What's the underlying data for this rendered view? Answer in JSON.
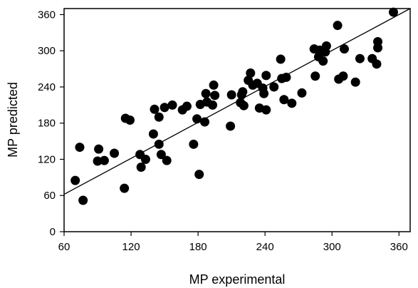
{
  "chart_data": {
    "type": "scatter",
    "xlabel": "MP experimental",
    "ylabel": "MP predicted",
    "xlim": [
      60,
      370
    ],
    "ylim": [
      0,
      370
    ],
    "xticks": [
      60,
      120,
      180,
      240,
      300,
      360
    ],
    "yticks": [
      0,
      60,
      120,
      180,
      240,
      300,
      360
    ],
    "grid": false,
    "marker_color": "#000000",
    "points": [
      {
        "x": 70,
        "y": 85
      },
      {
        "x": 74,
        "y": 140
      },
      {
        "x": 77,
        "y": 52
      },
      {
        "x": 90,
        "y": 117
      },
      {
        "x": 91,
        "y": 137
      },
      {
        "x": 96,
        "y": 118
      },
      {
        "x": 105,
        "y": 130
      },
      {
        "x": 114,
        "y": 72
      },
      {
        "x": 115,
        "y": 188
      },
      {
        "x": 119,
        "y": 185
      },
      {
        "x": 128,
        "y": 128
      },
      {
        "x": 129,
        "y": 107
      },
      {
        "x": 133,
        "y": 120
      },
      {
        "x": 140,
        "y": 162
      },
      {
        "x": 141,
        "y": 203
      },
      {
        "x": 145,
        "y": 145
      },
      {
        "x": 145,
        "y": 190
      },
      {
        "x": 147,
        "y": 128
      },
      {
        "x": 150,
        "y": 206
      },
      {
        "x": 152,
        "y": 118
      },
      {
        "x": 157,
        "y": 210
      },
      {
        "x": 166,
        "y": 202
      },
      {
        "x": 170,
        "y": 208
      },
      {
        "x": 176,
        "y": 145
      },
      {
        "x": 179,
        "y": 187
      },
      {
        "x": 181,
        "y": 95
      },
      {
        "x": 182,
        "y": 211
      },
      {
        "x": 186,
        "y": 182
      },
      {
        "x": 187,
        "y": 229
      },
      {
        "x": 188,
        "y": 215
      },
      {
        "x": 193,
        "y": 210
      },
      {
        "x": 194,
        "y": 243
      },
      {
        "x": 195,
        "y": 226
      },
      {
        "x": 209,
        "y": 175
      },
      {
        "x": 210,
        "y": 227
      },
      {
        "x": 218,
        "y": 214
      },
      {
        "x": 219,
        "y": 227
      },
      {
        "x": 220,
        "y": 232
      },
      {
        "x": 221,
        "y": 209
      },
      {
        "x": 225,
        "y": 251
      },
      {
        "x": 227,
        "y": 263
      },
      {
        "x": 229,
        "y": 243
      },
      {
        "x": 233,
        "y": 246
      },
      {
        "x": 235,
        "y": 205
      },
      {
        "x": 238,
        "y": 238
      },
      {
        "x": 239,
        "y": 229
      },
      {
        "x": 241,
        "y": 259
      },
      {
        "x": 241,
        "y": 202
      },
      {
        "x": 248,
        "y": 240
      },
      {
        "x": 254,
        "y": 286
      },
      {
        "x": 255,
        "y": 254
      },
      {
        "x": 257,
        "y": 219
      },
      {
        "x": 259,
        "y": 256
      },
      {
        "x": 264,
        "y": 213
      },
      {
        "x": 273,
        "y": 230
      },
      {
        "x": 284,
        "y": 303
      },
      {
        "x": 285,
        "y": 258
      },
      {
        "x": 288,
        "y": 290
      },
      {
        "x": 289,
        "y": 301
      },
      {
        "x": 292,
        "y": 283
      },
      {
        "x": 294,
        "y": 298
      },
      {
        "x": 295,
        "y": 308
      },
      {
        "x": 305,
        "y": 342
      },
      {
        "x": 306,
        "y": 253
      },
      {
        "x": 310,
        "y": 258
      },
      {
        "x": 311,
        "y": 303
      },
      {
        "x": 321,
        "y": 248
      },
      {
        "x": 325,
        "y": 287
      },
      {
        "x": 336,
        "y": 287
      },
      {
        "x": 340,
        "y": 278
      },
      {
        "x": 341,
        "y": 315
      },
      {
        "x": 341,
        "y": 305
      },
      {
        "x": 355,
        "y": 364
      }
    ],
    "fit_line": {
      "x": [
        60,
        370
      ],
      "y": [
        62,
        370
      ]
    }
  }
}
